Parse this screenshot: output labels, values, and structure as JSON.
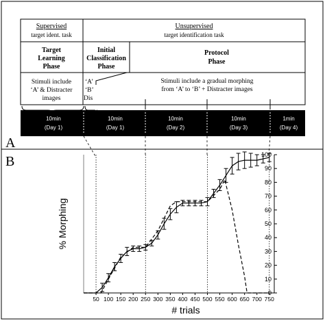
{
  "panel_a": {
    "label": "A",
    "supervised_header": "Supervised",
    "supervised_sub": "target ident. task",
    "unsupervised_header": "Unsupervised",
    "unsupervised_sub": "target identification task",
    "phase1_line1": "Target",
    "phase1_line2": "Learning",
    "phase1_line3": "Phase",
    "phase2_line1": "Initial",
    "phase2_line2": "Classification",
    "phase2_line3": "Phase",
    "phase3_line1": "Protocol",
    "phase3_line2": "Phase",
    "stim1_line1": "Stimuli include",
    "stim1_line2": "‘A’ & Distracter",
    "stim1_line3": "images",
    "stim2_line1": "‘A’",
    "stim2_line2": "‘B’",
    "stim2_line3": "Dis",
    "stim3_line1": "Stimuli include a gradual morphing",
    "stim3_line2": "from ‘A’ to ‘B’ + Distracter images",
    "timeline": [
      {
        "top": "10min",
        "bottom": "(Day 1)"
      },
      {
        "top": "10min",
        "bottom": "(Day 1)"
      },
      {
        "top": "10min",
        "bottom": "(Day 2)"
      },
      {
        "top": "10min",
        "bottom": "(Day 3)"
      },
      {
        "top": "1min",
        "bottom": "(Day 4)"
      }
    ]
  },
  "panel_b": {
    "label": "B"
  },
  "chart_data": {
    "type": "line",
    "xlabel": "# trials",
    "ylabel": "% Morphing",
    "xlim": [
      0,
      770
    ],
    "ylim": [
      0,
      100
    ],
    "xticks": [
      50,
      100,
      150,
      200,
      250,
      300,
      350,
      400,
      450,
      500,
      550,
      600,
      650,
      700,
      750
    ],
    "yticks": [
      0,
      10,
      20,
      30,
      40,
      50,
      60,
      70,
      80,
      90,
      100
    ],
    "phase_boundaries": [
      50,
      250,
      500,
      750
    ],
    "series": [
      {
        "style": "solid",
        "x": [
          0,
          50,
          75,
          100,
          125,
          150,
          175,
          200,
          225,
          250,
          275,
          300,
          325,
          350,
          375,
          400,
          425,
          450,
          475,
          500,
          525,
          550,
          575,
          600,
          625,
          650,
          675,
          700,
          725,
          750
        ],
        "y": [
          0,
          0,
          4,
          11,
          19,
          25,
          30,
          32,
          32,
          33,
          36,
          42,
          50,
          57,
          62,
          65,
          65,
          65,
          65,
          66,
          72,
          78,
          85,
          92,
          95,
          96,
          96,
          96,
          97,
          98
        ],
        "err": [
          0,
          0,
          3,
          3,
          3,
          3,
          3,
          2,
          2,
          2,
          2,
          3,
          4,
          4,
          4,
          2,
          2,
          2,
          2,
          3,
          3,
          4,
          5,
          6,
          6,
          6,
          5,
          4,
          3,
          3
        ]
      },
      {
        "style": "dashed",
        "x": [
          0,
          50,
          70,
          100,
          150,
          200,
          250,
          300,
          350,
          375,
          400,
          450,
          500,
          550,
          570,
          600,
          625,
          650,
          660,
          675,
          700,
          750
        ],
        "y": [
          0,
          0,
          0,
          10,
          26,
          33,
          33,
          45,
          63,
          66,
          66,
          66,
          66,
          75,
          82,
          60,
          35,
          12,
          0,
          0,
          0,
          0
        ]
      }
    ]
  }
}
